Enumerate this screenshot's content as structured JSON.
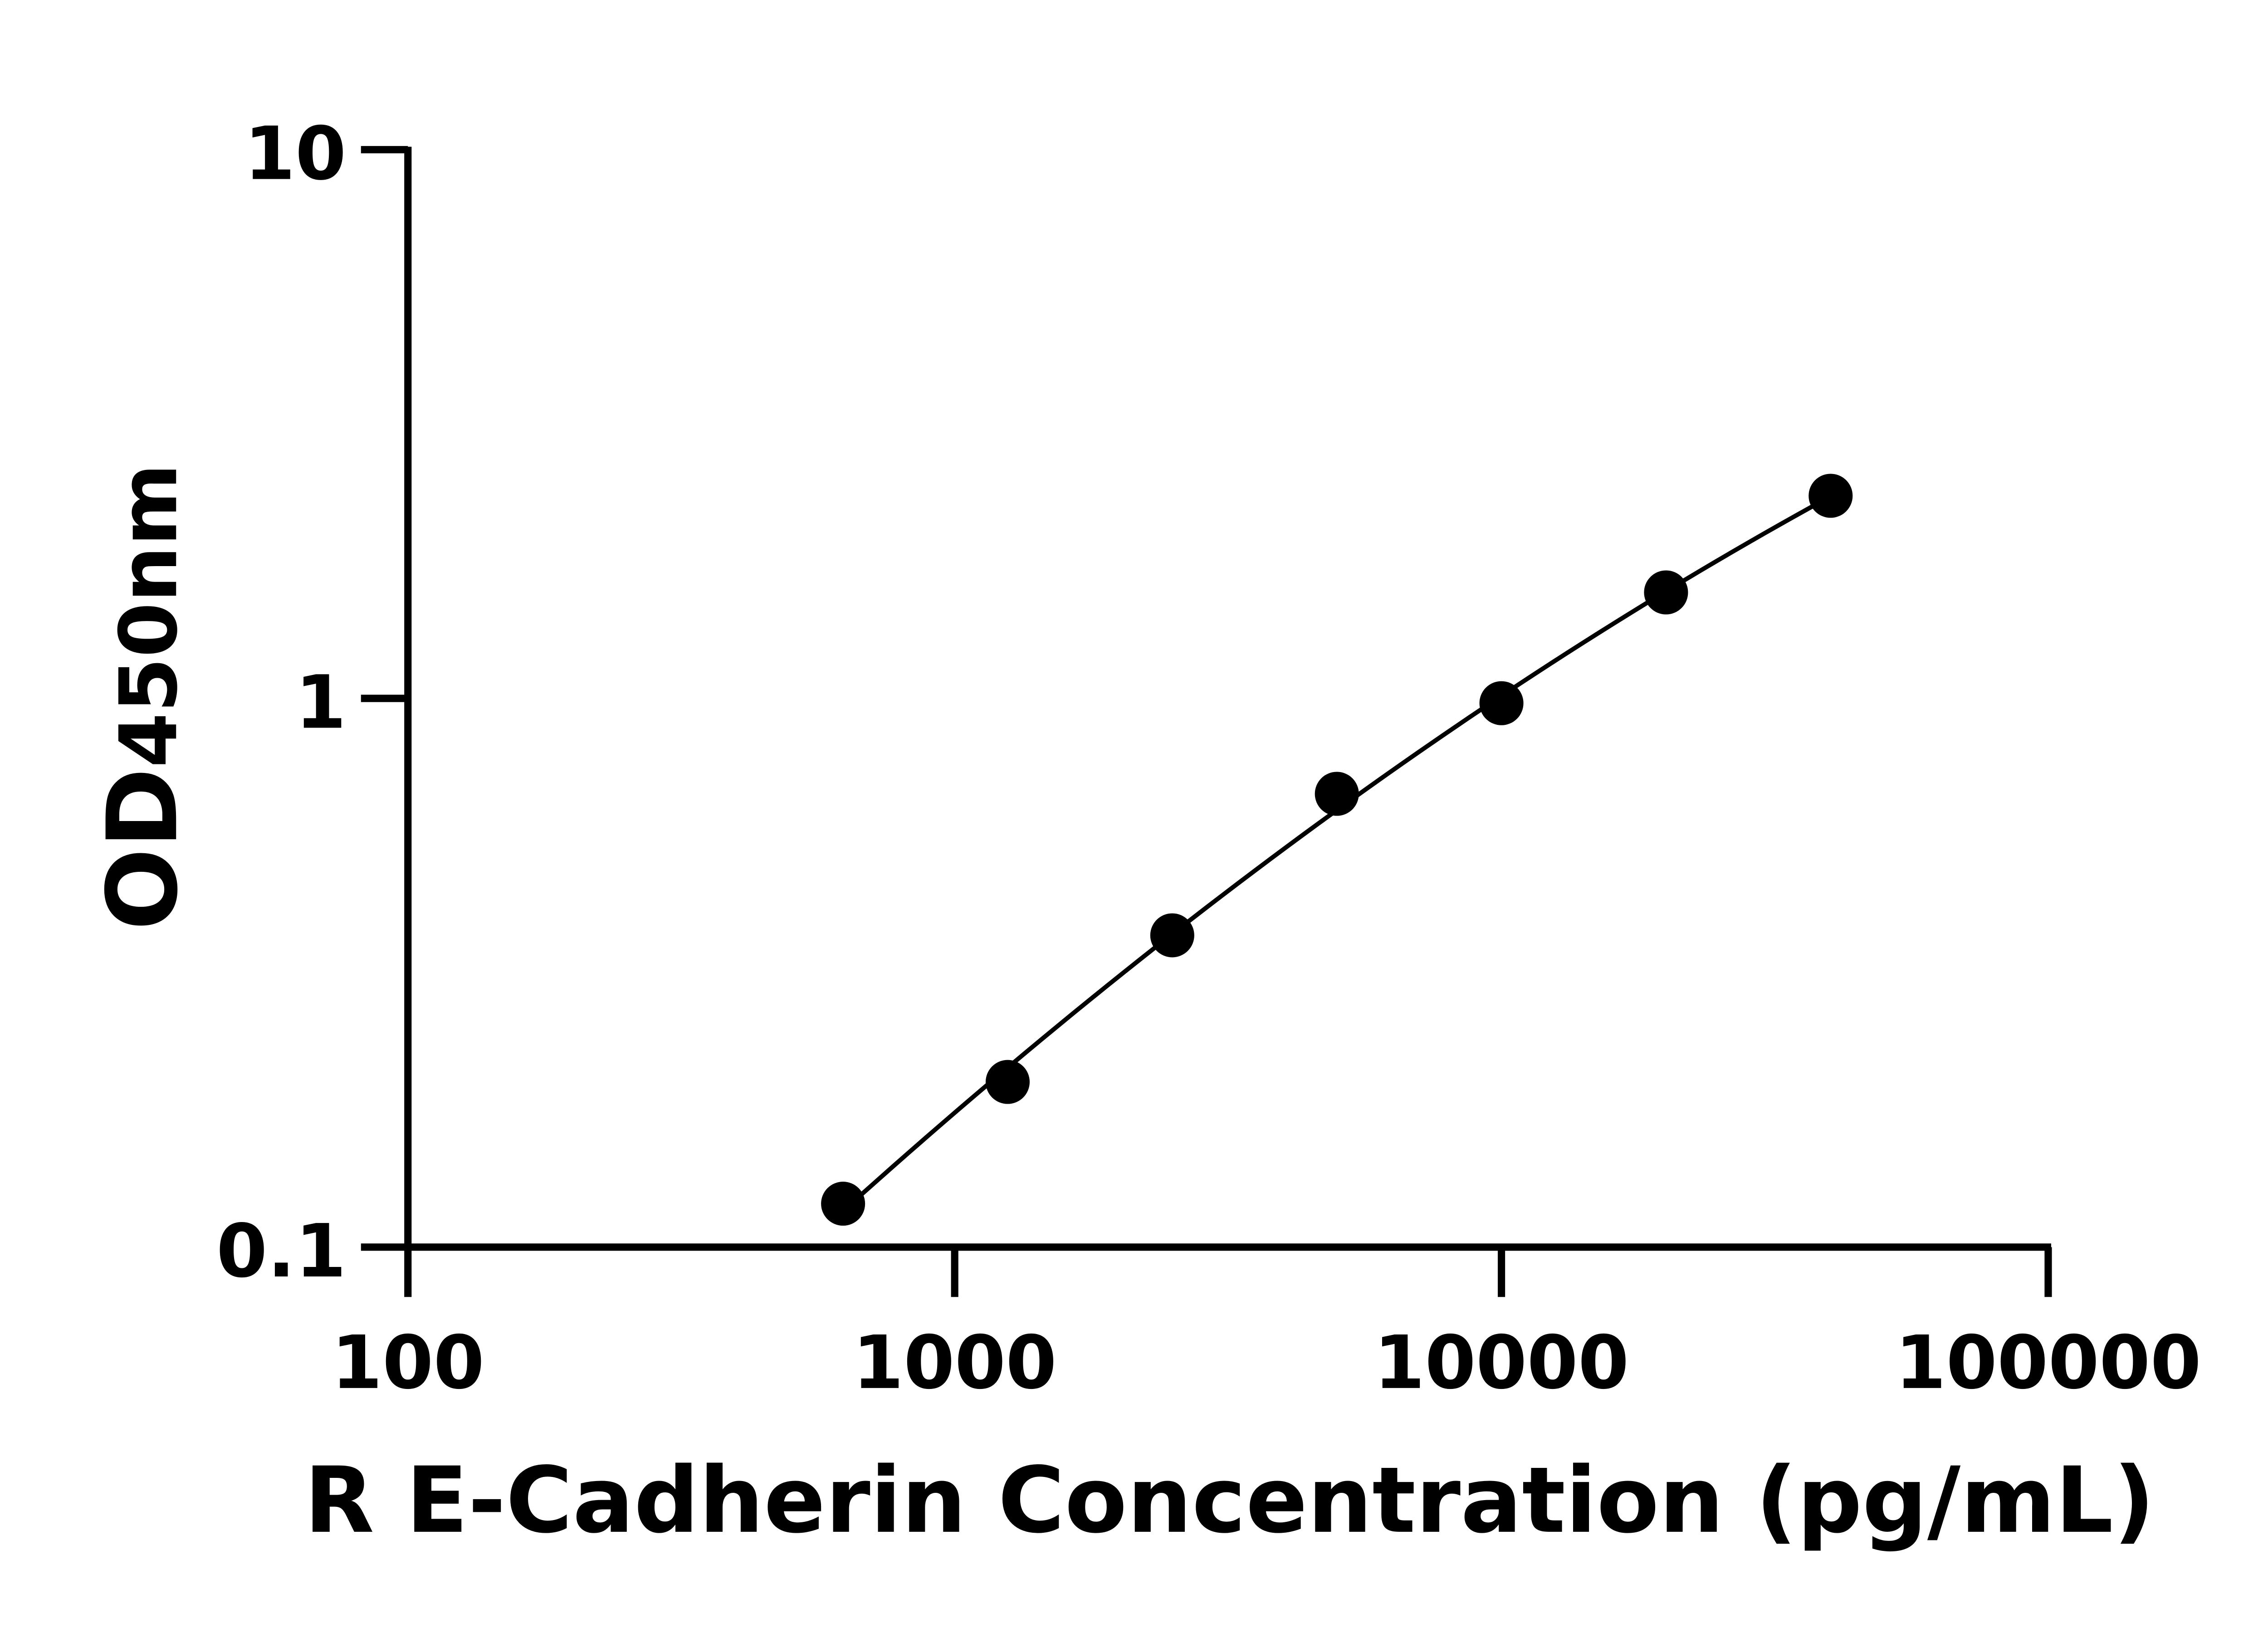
{
  "chart_data": {
    "type": "scatter",
    "title": "",
    "xlabel": "R E-Cadherin Concentration (pg/mL)",
    "ylabel_main": "OD",
    "ylabel_sub": "450nm",
    "xscale": "log",
    "yscale": "log",
    "xlim": [
      100,
      100000
    ],
    "ylim": [
      0.1,
      10
    ],
    "xticks": [
      "100",
      "1000",
      "10000",
      "100000"
    ],
    "yticks": [
      "0.1",
      "1",
      "10"
    ],
    "grid": false,
    "legend": "none",
    "fit_line": true,
    "marker_color": "#000000",
    "series": [
      {
        "x": [
          625,
          1250,
          2500,
          5000,
          10000,
          20000,
          40000
        ],
        "y": [
          0.12,
          0.2,
          0.37,
          0.67,
          0.98,
          1.56,
          2.34
        ]
      }
    ]
  }
}
